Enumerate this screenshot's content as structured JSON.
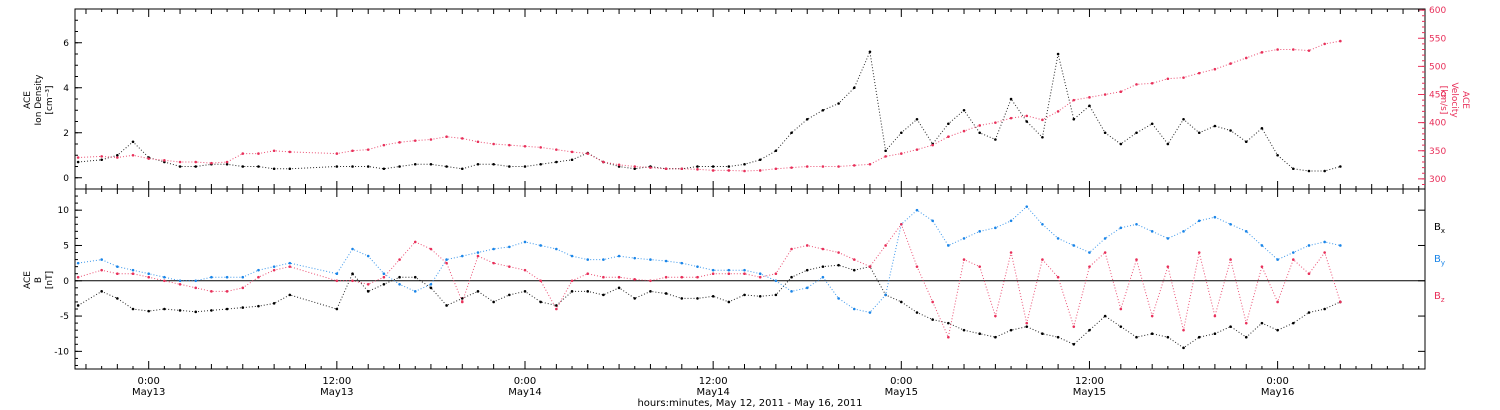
{
  "chart_data": [
    {
      "type": "scatter",
      "panel": "plasma",
      "x_unit": "hours since 2011-05-12 00:00 UT",
      "xlim": [
        19.3,
        105.4
      ],
      "ylabel_left": [
        "ACE",
        "Ion Density",
        "[cm⁻³]"
      ],
      "ylabel_right": [
        "ACE",
        "Velocity",
        "[km/s]"
      ],
      "ylim_left": [
        -0.5,
        7.5
      ],
      "yticks_left": [
        0,
        2,
        4,
        6
      ],
      "ylim_right": [
        282,
        602
      ],
      "yticks_right": [
        300,
        350,
        400,
        450,
        500,
        550,
        600
      ],
      "series": [
        {
          "name": "Ion Density",
          "axis": "left",
          "color": "#000000",
          "x": [
            19.5,
            21,
            22,
            23,
            24,
            25,
            26,
            27,
            28,
            29,
            30,
            31,
            32,
            33,
            36,
            37,
            38,
            39,
            40,
            41,
            42,
            43,
            44,
            45,
            46,
            47,
            48,
            49,
            50,
            51,
            52,
            53,
            54,
            55,
            56,
            57,
            58,
            59,
            60,
            61,
            62,
            63,
            64,
            65,
            66,
            67,
            68,
            69,
            70,
            71,
            72,
            73,
            74,
            75,
            76,
            77,
            78,
            79,
            80,
            81,
            82,
            83,
            84,
            85,
            86,
            87,
            88,
            89,
            90,
            91,
            92,
            93,
            94,
            95,
            96,
            97,
            98,
            99,
            100
          ],
          "y": [
            0.7,
            0.8,
            1.0,
            1.6,
            0.9,
            0.7,
            0.5,
            0.5,
            0.6,
            0.6,
            0.5,
            0.5,
            0.4,
            0.4,
            0.5,
            0.5,
            0.5,
            0.4,
            0.5,
            0.6,
            0.6,
            0.5,
            0.4,
            0.6,
            0.6,
            0.5,
            0.5,
            0.6,
            0.7,
            0.8,
            1.1,
            0.7,
            0.5,
            0.4,
            0.5,
            0.4,
            0.4,
            0.5,
            0.5,
            0.5,
            0.6,
            0.8,
            1.2,
            2.0,
            2.6,
            3.0,
            3.3,
            4.0,
            5.6,
            1.2,
            2.0,
            2.6,
            1.5,
            2.4,
            3.0,
            2.0,
            1.7,
            3.5,
            2.5,
            1.8,
            5.5,
            2.6,
            3.2,
            2.0,
            1.5,
            2.0,
            2.4,
            1.5,
            2.6,
            2.0,
            2.3,
            2.1,
            1.6,
            2.2,
            1.0,
            0.4,
            0.3,
            0.3,
            0.5
          ]
        },
        {
          "name": "Velocity",
          "axis": "right",
          "color": "#e8305a",
          "x": [
            19.5,
            21,
            22,
            23,
            24,
            25,
            26,
            27,
            28,
            29,
            30,
            31,
            32,
            33,
            36,
            37,
            38,
            39,
            40,
            41,
            42,
            43,
            44,
            45,
            46,
            47,
            48,
            49,
            50,
            51,
            52,
            53,
            54,
            55,
            56,
            57,
            58,
            59,
            60,
            61,
            62,
            63,
            64,
            65,
            66,
            67,
            68,
            69,
            70,
            71,
            72,
            73,
            74,
            75,
            76,
            77,
            78,
            79,
            80,
            81,
            82,
            83,
            84,
            85,
            86,
            87,
            88,
            89,
            90,
            91,
            92,
            93,
            94,
            95,
            96,
            97,
            98,
            99,
            100
          ],
          "y": [
            338,
            340,
            338,
            342,
            336,
            333,
            330,
            330,
            328,
            330,
            345,
            345,
            350,
            348,
            345,
            350,
            352,
            360,
            365,
            368,
            370,
            375,
            372,
            366,
            362,
            360,
            358,
            356,
            352,
            348,
            345,
            330,
            325,
            322,
            320,
            318,
            318,
            317,
            315,
            315,
            314,
            315,
            318,
            320,
            322,
            322,
            322,
            324,
            326,
            340,
            345,
            352,
            360,
            375,
            385,
            395,
            400,
            408,
            412,
            405,
            420,
            440,
            445,
            450,
            455,
            468,
            470,
            478,
            480,
            488,
            495,
            505,
            515,
            525,
            530,
            530,
            528,
            540,
            545
          ]
        }
      ]
    },
    {
      "type": "scatter",
      "panel": "magnetic-field",
      "x_unit": "hours since 2011-05-12 00:00 UT",
      "xlim": [
        19.3,
        105.4
      ],
      "ylabel": [
        "ACE",
        "B",
        "[nT]"
      ],
      "ylim": [
        -12.5,
        13
      ],
      "yticks": [
        -10,
        -5,
        0,
        5,
        10
      ],
      "zero_line": true,
      "series": [
        {
          "name": "Bx",
          "color": "#000000",
          "x": [
            19.5,
            21,
            22,
            23,
            24,
            25,
            26,
            27,
            28,
            29,
            30,
            31,
            32,
            33,
            36,
            37,
            38,
            39,
            40,
            41,
            42,
            43,
            44,
            45,
            46,
            47,
            48,
            49,
            50,
            51,
            52,
            53,
            54,
            55,
            56,
            57,
            58,
            59,
            60,
            61,
            62,
            63,
            64,
            65,
            66,
            67,
            68,
            69,
            70,
            71,
            72,
            73,
            74,
            75,
            76,
            77,
            78,
            79,
            80,
            81,
            82,
            83,
            84,
            85,
            86,
            87,
            88,
            89,
            90,
            91,
            92,
            93,
            94,
            95,
            96,
            97,
            98,
            99,
            100
          ],
          "y": [
            -3.5,
            -1.5,
            -2.5,
            -4.0,
            -4.3,
            -4.0,
            -4.2,
            -4.4,
            -4.2,
            -4.0,
            -3.8,
            -3.6,
            -3.2,
            -2.0,
            -4.0,
            1.0,
            -1.5,
            -0.5,
            0.5,
            0.5,
            -1.0,
            -3.5,
            -2.5,
            -1.5,
            -3.0,
            -2.0,
            -1.5,
            -3.0,
            -3.5,
            -1.5,
            -1.5,
            -2.0,
            -1.0,
            -2.5,
            -1.5,
            -1.8,
            -2.5,
            -2.5,
            -2.2,
            -3.0,
            -2.0,
            -2.2,
            -2.0,
            0.5,
            1.5,
            2.0,
            2.2,
            1.5,
            2.0,
            -2.0,
            -3.0,
            -4.5,
            -5.5,
            -6.0,
            -7.0,
            -7.5,
            -8.0,
            -7.0,
            -6.5,
            -7.5,
            -8.0,
            -9.0,
            -7.0,
            -5.0,
            -6.5,
            -8.0,
            -7.5,
            -8.0,
            -9.5,
            -8.0,
            -7.5,
            -6.5,
            -8.0,
            -6.0,
            -7.0,
            -6.0,
            -4.5,
            -4.0,
            -3.0
          ]
        },
        {
          "name": "By",
          "color": "#1a85e8",
          "x": [
            19.5,
            21,
            22,
            23,
            24,
            25,
            26,
            27,
            28,
            29,
            30,
            31,
            32,
            33,
            36,
            37,
            38,
            39,
            40,
            41,
            42,
            43,
            44,
            45,
            46,
            47,
            48,
            49,
            50,
            51,
            52,
            53,
            54,
            55,
            56,
            57,
            58,
            59,
            60,
            61,
            62,
            63,
            64,
            65,
            66,
            67,
            68,
            69,
            70,
            71,
            72,
            73,
            74,
            75,
            76,
            77,
            78,
            79,
            80,
            81,
            82,
            83,
            84,
            85,
            86,
            87,
            88,
            89,
            90,
            91,
            92,
            93,
            94,
            95,
            96,
            97,
            98,
            99,
            100
          ],
          "y": [
            2.5,
            3.0,
            2.0,
            1.5,
            1.0,
            0.5,
            0.0,
            0.0,
            0.5,
            0.5,
            0.5,
            1.5,
            2.0,
            2.5,
            1.0,
            4.5,
            3.5,
            1.0,
            -0.5,
            -1.5,
            -0.5,
            3.0,
            3.5,
            4.0,
            4.5,
            4.8,
            5.5,
            5.0,
            4.5,
            3.5,
            3.0,
            3.0,
            3.5,
            3.2,
            3.0,
            2.8,
            2.5,
            2.0,
            1.5,
            1.5,
            1.5,
            1.0,
            0.0,
            -1.5,
            -1.0,
            0.5,
            -2.5,
            -4.0,
            -4.5,
            -2.0,
            8.0,
            10.0,
            8.5,
            5.0,
            6.0,
            7.0,
            7.5,
            8.5,
            10.5,
            8.0,
            6.0,
            5.0,
            4.0,
            6.0,
            7.5,
            8.0,
            7.0,
            6.0,
            7.0,
            8.5,
            9.0,
            8.0,
            7.0,
            5.0,
            3.0,
            4.0,
            5.0,
            5.5,
            5.0
          ]
        },
        {
          "name": "Bz",
          "color": "#e8305a",
          "x": [
            19.5,
            21,
            22,
            23,
            24,
            25,
            26,
            27,
            28,
            29,
            30,
            31,
            32,
            33,
            36,
            37,
            38,
            39,
            40,
            41,
            42,
            43,
            44,
            45,
            46,
            47,
            48,
            49,
            50,
            51,
            52,
            53,
            54,
            55,
            56,
            57,
            58,
            59,
            60,
            61,
            62,
            63,
            64,
            65,
            66,
            67,
            68,
            69,
            70,
            71,
            72,
            73,
            74,
            75,
            76,
            77,
            78,
            79,
            80,
            81,
            82,
            83,
            84,
            85,
            86,
            87,
            88,
            89,
            90,
            91,
            92,
            93,
            94,
            95,
            96,
            97,
            98,
            99,
            100
          ],
          "y": [
            0.5,
            1.5,
            1.0,
            1.0,
            0.5,
            0.0,
            -0.5,
            -1.0,
            -1.5,
            -1.5,
            -1.0,
            0.5,
            1.5,
            2.0,
            0.0,
            0.0,
            -0.5,
            0.5,
            3.0,
            5.5,
            4.5,
            2.5,
            -3.0,
            3.5,
            2.5,
            2.0,
            1.5,
            0.0,
            -4.0,
            0.0,
            1.0,
            0.5,
            0.5,
            0.2,
            0.0,
            0.5,
            0.5,
            0.5,
            1.0,
            1.0,
            1.0,
            0.5,
            1.0,
            4.5,
            5.0,
            4.5,
            4.0,
            3.0,
            2.0,
            5.0,
            8.0,
            2.0,
            -3.0,
            -8.0,
            3.0,
            2.0,
            -5.0,
            4.0,
            -6.0,
            3.0,
            0.5,
            -6.5,
            2.0,
            4.0,
            -4.0,
            3.0,
            -5.0,
            2.0,
            -7.0,
            4.0,
            -5.0,
            3.0,
            -6.0,
            2.0,
            -3.0,
            3.0,
            1.0,
            4.0,
            -3.0
          ]
        }
      ],
      "legend": [
        "B",
        "B",
        "B"
      ],
      "legend_subscripts": [
        "x",
        "y",
        "z"
      ]
    }
  ],
  "xaxis": {
    "ticks": [
      {
        "x": 24,
        "time": "0:00",
        "date": "May13"
      },
      {
        "x": 36,
        "time": "12:00",
        "date": "May13"
      },
      {
        "x": 48,
        "time": "0:00",
        "date": "May14"
      },
      {
        "x": 60,
        "time": "12:00",
        "date": "May14"
      },
      {
        "x": 72,
        "time": "0:00",
        "date": "May15"
      },
      {
        "x": 84,
        "time": "12:00",
        "date": "May15"
      },
      {
        "x": 96,
        "time": "0:00",
        "date": "May16"
      }
    ],
    "title": "hours:minutes, May 12, 2011 - May 16, 2011"
  },
  "colors": {
    "axis": "#000000",
    "density": "#000000",
    "velocity": "#e8305a",
    "bx": "#000000",
    "by": "#1a85e8",
    "bz": "#e8305a"
  }
}
